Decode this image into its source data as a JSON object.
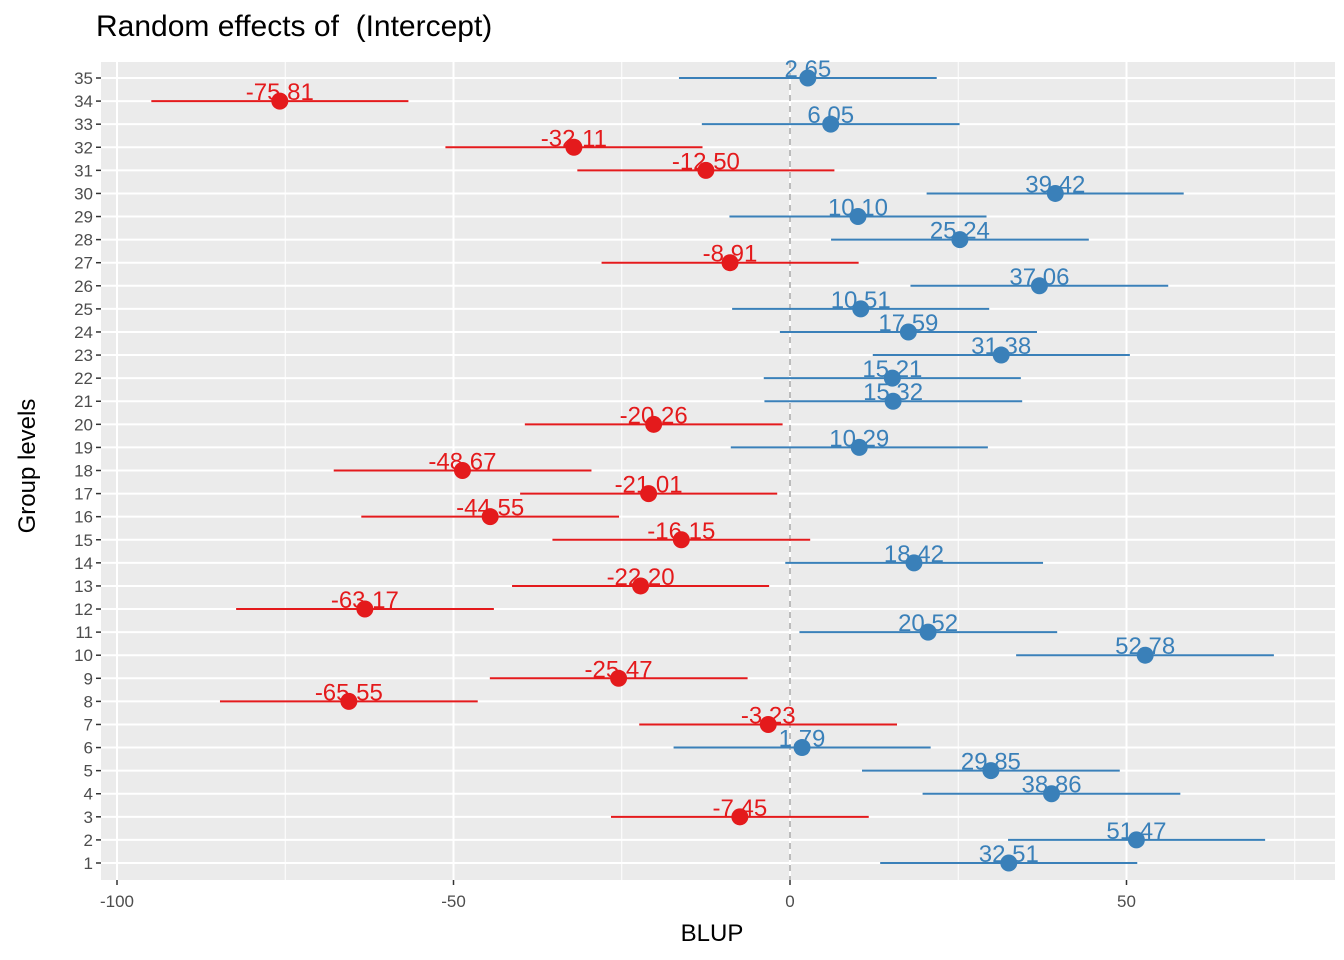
{
  "chart_data": {
    "type": "scatter",
    "title": "Random effects of  (Intercept)",
    "xlabel": "BLUP",
    "ylabel": "Group levels",
    "xlim": [
      -105,
      75
    ],
    "xticks": [
      -100,
      -50,
      0,
      50
    ],
    "grid": true,
    "legend": "none",
    "reference_line_x": 0,
    "colors": {
      "positive": "#3a80b9",
      "negative": "#e41a1c",
      "panel": "#ebebeb",
      "grid": "#ffffff",
      "refline": "#a6a6a6"
    },
    "points": [
      {
        "level": "1",
        "blup": 32.51,
        "label": "32.51",
        "lower": 13.4,
        "upper": 51.6
      },
      {
        "level": "2",
        "blup": 51.47,
        "label": "51.47",
        "lower": 32.4,
        "upper": 70.6
      },
      {
        "level": "3",
        "blup": -7.45,
        "label": "-7.45",
        "lower": -26.6,
        "upper": 11.7
      },
      {
        "level": "4",
        "blup": 38.86,
        "label": "38.86",
        "lower": 19.7,
        "upper": 58.0
      },
      {
        "level": "5",
        "blup": 29.85,
        "label": "29.85",
        "lower": 10.7,
        "upper": 49.0
      },
      {
        "level": "6",
        "blup": 1.79,
        "label": "1.79",
        "lower": -17.3,
        "upper": 20.9
      },
      {
        "level": "7",
        "blup": -3.23,
        "label": "-3.23",
        "lower": -22.4,
        "upper": 15.9
      },
      {
        "level": "8",
        "blup": -65.55,
        "label": "-65.55",
        "lower": -84.7,
        "upper": -46.4
      },
      {
        "level": "9",
        "blup": -25.47,
        "label": "-25.47",
        "lower": -44.6,
        "upper": -6.3
      },
      {
        "level": "10",
        "blup": 52.78,
        "label": "52.78",
        "lower": 33.6,
        "upper": 71.9
      },
      {
        "level": "11",
        "blup": 20.52,
        "label": "20.52",
        "lower": 1.4,
        "upper": 39.7
      },
      {
        "level": "12",
        "blup": -63.17,
        "label": "-63.17",
        "lower": -82.3,
        "upper": -44.0
      },
      {
        "level": "13",
        "blup": -22.2,
        "label": "-22.20",
        "lower": -41.3,
        "upper": -3.1
      },
      {
        "level": "14",
        "blup": 18.42,
        "label": "18.42",
        "lower": -0.7,
        "upper": 37.6
      },
      {
        "level": "15",
        "blup": -16.15,
        "label": "-16.15",
        "lower": -35.3,
        "upper": 3.0
      },
      {
        "level": "16",
        "blup": -44.55,
        "label": "-44.55",
        "lower": -63.7,
        "upper": -25.4
      },
      {
        "level": "17",
        "blup": -21.01,
        "label": "-21.01",
        "lower": -40.1,
        "upper": -1.9
      },
      {
        "level": "18",
        "blup": -48.67,
        "label": "-48.67",
        "lower": -67.8,
        "upper": -29.5
      },
      {
        "level": "19",
        "blup": 10.29,
        "label": "10.29",
        "lower": -8.8,
        "upper": 29.4
      },
      {
        "level": "20",
        "blup": -20.26,
        "label": "-20.26",
        "lower": -39.4,
        "upper": -1.1
      },
      {
        "level": "21",
        "blup": 15.32,
        "label": "15.32",
        "lower": -3.8,
        "upper": 34.5
      },
      {
        "level": "22",
        "blup": 15.21,
        "label": "15.21",
        "lower": -3.9,
        "upper": 34.3
      },
      {
        "level": "23",
        "blup": 31.38,
        "label": "31.38",
        "lower": 12.3,
        "upper": 50.5
      },
      {
        "level": "24",
        "blup": 17.59,
        "label": "17.59",
        "lower": -1.5,
        "upper": 36.7
      },
      {
        "level": "25",
        "blup": 10.51,
        "label": "10.51",
        "lower": -8.6,
        "upper": 29.6
      },
      {
        "level": "26",
        "blup": 37.06,
        "label": "37.06",
        "lower": 17.9,
        "upper": 56.2
      },
      {
        "level": "27",
        "blup": -8.91,
        "label": "-8.91",
        "lower": -28.0,
        "upper": 10.2
      },
      {
        "level": "28",
        "blup": 25.24,
        "label": "25.24",
        "lower": 6.1,
        "upper": 44.4
      },
      {
        "level": "29",
        "blup": 10.1,
        "label": "10.10",
        "lower": -9.0,
        "upper": 29.2
      },
      {
        "level": "30",
        "blup": 39.42,
        "label": "39.42",
        "lower": 20.3,
        "upper": 58.5
      },
      {
        "level": "31",
        "blup": -12.5,
        "label": "-12.50",
        "lower": -31.6,
        "upper": 6.6
      },
      {
        "level": "32",
        "blup": -32.11,
        "label": "-32.11",
        "lower": -51.2,
        "upper": -13.0
      },
      {
        "level": "33",
        "blup": 6.05,
        "label": "6.05",
        "lower": -13.1,
        "upper": 25.2
      },
      {
        "level": "34",
        "blup": -75.81,
        "label": "-75.81",
        "lower": -94.9,
        "upper": -56.7
      },
      {
        "level": "35",
        "blup": 2.65,
        "label": "2.65",
        "lower": -16.5,
        "upper": 21.8
      }
    ]
  }
}
